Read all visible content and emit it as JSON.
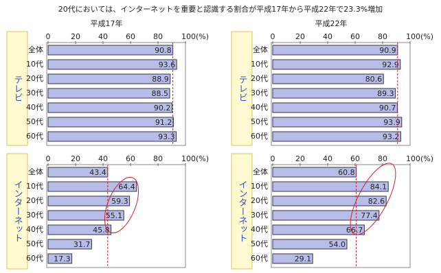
{
  "title": "20代においては、インターネットを重要と認識する割合が平成17年から平成22年で23.3%増加",
  "columns": [
    "平成17年",
    "平成22年"
  ],
  "rows": [
    "テレビ",
    "インターネット"
  ],
  "chart_data": [
    {
      "type": "hbar",
      "categories": [
        "全体",
        "10代",
        "20代",
        "30代",
        "40代",
        "50代",
        "60代"
      ],
      "values": [
        90.8,
        93.6,
        88.9,
        88.5,
        90.2,
        91.2,
        93.3
      ],
      "color": "#b8bce8",
      "xlim": [
        0,
        100
      ],
      "xticks": [
        0,
        20,
        40,
        60,
        80,
        {
          "value": 100,
          "label": "100(%)"
        }
      ]
    },
    {
      "type": "hbar",
      "categories": [
        "全体",
        "10代",
        "20代",
        "30代",
        "40代",
        "50代",
        "60代"
      ],
      "values": [
        90.9,
        92.9,
        80.6,
        89.3,
        90.7,
        93.9,
        93.2
      ],
      "color": "#b8bce8",
      "xlim": [
        0,
        100
      ],
      "xticks": [
        0,
        20,
        40,
        60,
        80,
        {
          "value": 100,
          "label": "100(%)"
        }
      ]
    },
    {
      "type": "hbar",
      "categories": [
        "全体",
        "10代",
        "20代",
        "30代",
        "40代",
        "50代",
        "60代"
      ],
      "values": [
        43.4,
        64.4,
        59.3,
        55.1,
        45.8,
        31.7,
        17.3
      ],
      "color": "#b8bce8",
      "xlim": [
        0,
        100
      ],
      "xticks": [
        0,
        20,
        40,
        60,
        80,
        {
          "value": 100,
          "label": "100(%)"
        }
      ]
    },
    {
      "type": "hbar",
      "categories": [
        "全体",
        "10代",
        "20代",
        "30代",
        "40代",
        "50代",
        "60代"
      ],
      "values": [
        60.8,
        84.1,
        82.6,
        77.4,
        66.7,
        54.0,
        29.1
      ],
      "value_labels": [
        "60.8",
        "84.1",
        "82.6",
        "77.4",
        "66.7",
        "54.0",
        "29.1"
      ],
      "color": "#b8bce8",
      "xlim": [
        0,
        100
      ],
      "xticks": [
        0,
        20,
        40,
        60,
        80,
        {
          "value": 100,
          "label": "100(%)"
        }
      ]
    }
  ]
}
